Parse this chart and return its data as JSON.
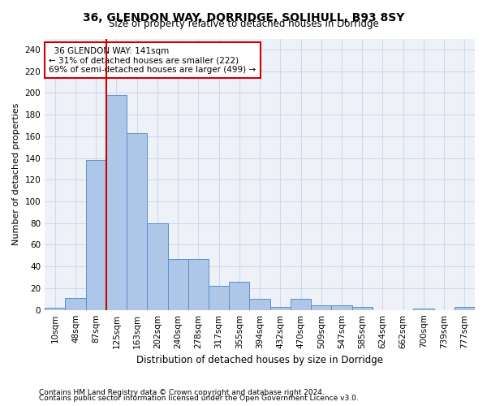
{
  "title1": "36, GLENDON WAY, DORRIDGE, SOLIHULL, B93 8SY",
  "title2": "Size of property relative to detached houses in Dorridge",
  "xlabel": "Distribution of detached houses by size in Dorridge",
  "ylabel": "Number of detached properties",
  "footer1": "Contains HM Land Registry data © Crown copyright and database right 2024.",
  "footer2": "Contains public sector information licensed under the Open Government Licence v3.0.",
  "bin_labels": [
    "10sqm",
    "48sqm",
    "87sqm",
    "125sqm",
    "163sqm",
    "202sqm",
    "240sqm",
    "278sqm",
    "317sqm",
    "355sqm",
    "394sqm",
    "432sqm",
    "470sqm",
    "509sqm",
    "547sqm",
    "585sqm",
    "624sqm",
    "662sqm",
    "700sqm",
    "739sqm",
    "777sqm"
  ],
  "bar_values": [
    2,
    11,
    138,
    198,
    163,
    80,
    47,
    47,
    22,
    26,
    10,
    3,
    10,
    4,
    4,
    3,
    0,
    0,
    1,
    0,
    3
  ],
  "bar_color": "#aec6e8",
  "bar_edge_color": "#5b8fc9",
  "grid_color": "#d0d8e8",
  "background_color": "#eef2f8",
  "red_line_x": 3.0,
  "red_line_color": "#cc0000",
  "annotation_text": "  36 GLENDON WAY: 141sqm\n← 31% of detached houses are smaller (222)\n69% of semi-detached houses are larger (499) →",
  "annotation_box_color": "#ffffff",
  "annotation_box_edge_color": "#cc0000",
  "ylim": [
    0,
    250
  ],
  "yticks": [
    0,
    20,
    40,
    60,
    80,
    100,
    120,
    140,
    160,
    180,
    200,
    220,
    240
  ],
  "title1_fontsize": 10,
  "title2_fontsize": 8.5,
  "annotation_fontsize": 7.5,
  "ylabel_fontsize": 8,
  "xlabel_fontsize": 8.5,
  "tick_fontsize": 7.5,
  "footer_fontsize": 6.5
}
